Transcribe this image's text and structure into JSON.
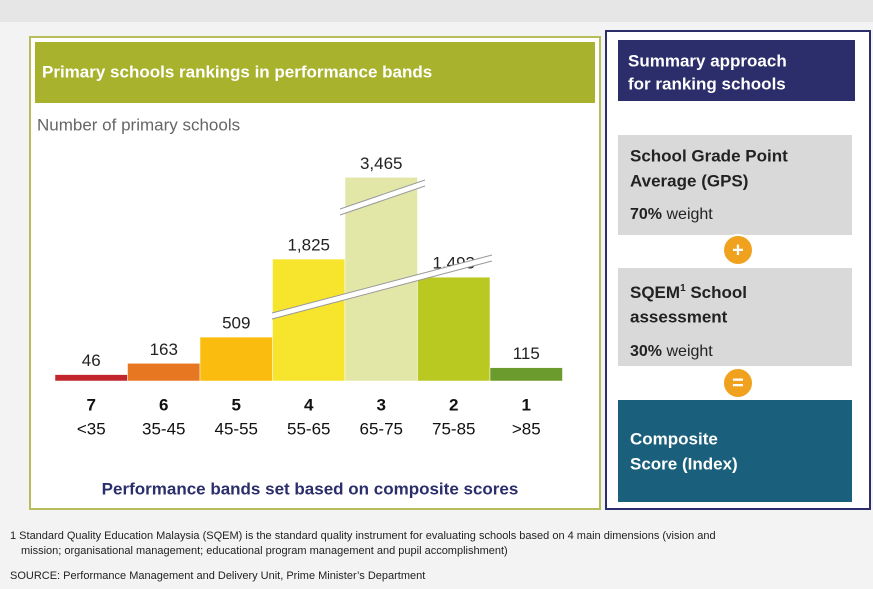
{
  "chart_data": {
    "type": "bar",
    "title": "Primary schools rankings in performance bands",
    "y_label": "Number of primary schools",
    "x_label": "Performance bands set based on composite scores",
    "categories": [
      "7",
      "6",
      "5",
      "4",
      "3",
      "2",
      "1"
    ],
    "ranges": [
      "<35",
      "35-45",
      "45-55",
      "55-65",
      "65-75",
      "75-85",
      ">85"
    ],
    "values": [
      46,
      163,
      509,
      1825,
      3465,
      1493,
      115
    ],
    "value_labels": [
      "46",
      "163",
      "509",
      "1,825",
      "3,465",
      "1,493",
      "115"
    ],
    "colors": [
      "#c0262c",
      "#e87722",
      "#f9bc0f",
      "#f6e52c",
      "#e2e7a8",
      "#b9c922",
      "#6b9b2c"
    ]
  },
  "summary": {
    "title": [
      "Summary approach",
      "for ranking schools"
    ],
    "gps": {
      "lines": [
        "School Grade Point",
        "Average (GPS)"
      ],
      "weight_value": "70%",
      "weight_text": "weight"
    },
    "plus": "+",
    "sqem": {
      "name": "SQEM",
      "sup": "1",
      "rest": " School",
      "line2": "assessment",
      "weight_value": "30%",
      "weight_text": "weight"
    },
    "equals": "=",
    "composite": [
      "Composite",
      "Score (Index)"
    ]
  },
  "footnote": {
    "lines": [
      "1 Standard Quality Education Malaysia (SQEM) is the standard quality instrument for evaluating schools based on 4 main dimensions (vision and",
      "mission; organisational management; educational program management and pupil accomplishment)"
    ]
  },
  "source": "SOURCE: Performance Management and Delivery Unit, Prime Minister’s Department"
}
